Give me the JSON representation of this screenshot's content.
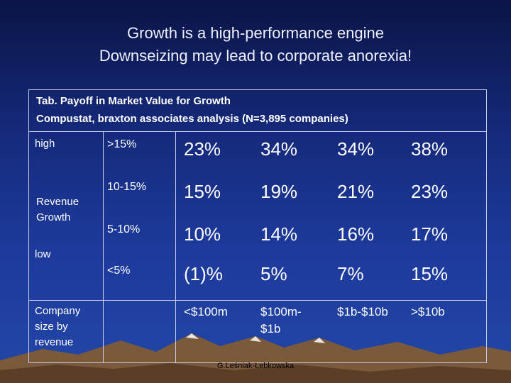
{
  "title_line1": "Growth is a high-performance engine",
  "title_line2": "Downseizing may lead to corporate anorexia!",
  "caption_line1": "Tab. Payoff in Market Value for Growth",
  "caption_line2": "Compustat, braxton associates analysis (N=3,895 companies)",
  "row_axis": {
    "high": "high",
    "revenue": "Revenue",
    "growth": "Growth",
    "low": "low"
  },
  "col_axis": {
    "line1": "Company",
    "line2": "size by",
    "line3": "revenue"
  },
  "rows": [
    {
      "range": ">15%",
      "values": [
        "23%",
        "34%",
        "34%",
        "38%"
      ]
    },
    {
      "range": "10-15%",
      "values": [
        "15%",
        "19%",
        "21%",
        "23%"
      ]
    },
    {
      "range": "5-10%",
      "values": [
        "10%",
        "14%",
        "16%",
        "17%"
      ]
    },
    {
      "range": "<5%",
      "values": [
        "(1)%",
        "5%",
        "7%",
        "15%"
      ]
    }
  ],
  "sizes": [
    {
      "line1": "<$100m",
      "line2": ""
    },
    {
      "line1": "$100m-",
      "line2": "$1b"
    },
    {
      "line1": "$1b-$10b",
      "line2": ""
    },
    {
      "line1": ">$10b",
      "line2": ""
    }
  ],
  "credit": "G.Leśniak-Łebkowska"
}
